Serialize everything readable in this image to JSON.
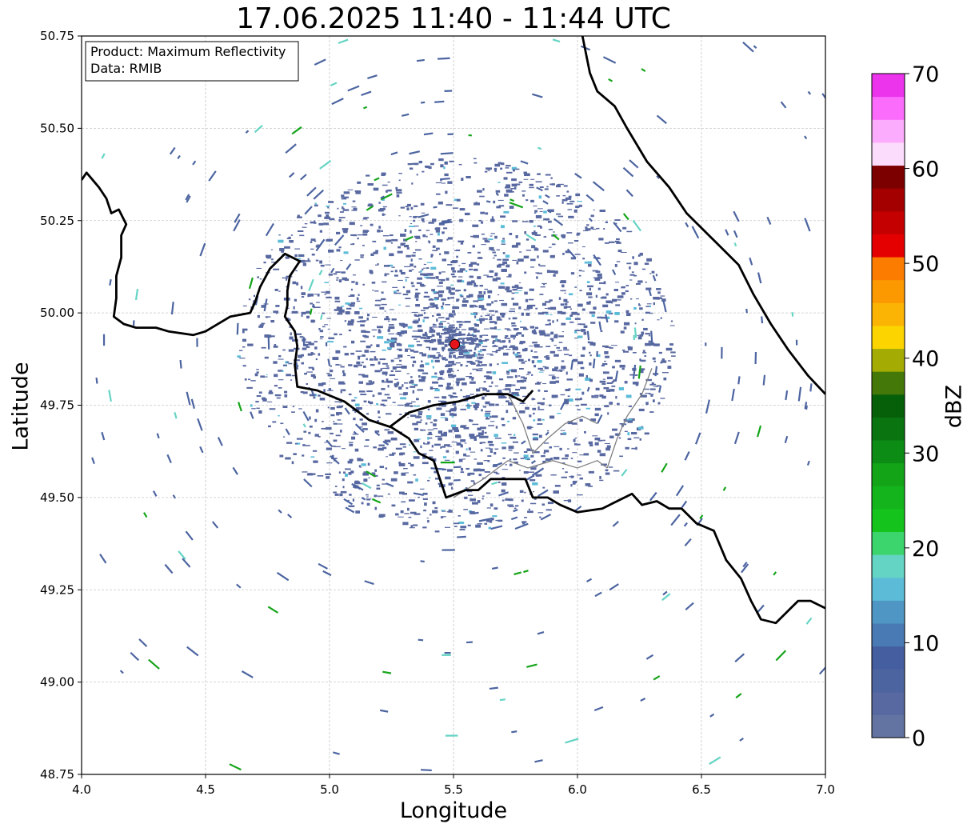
{
  "title": "17.06.2025 11:40 - 11:44 UTC",
  "info_box": {
    "product_line": "Product: Maximum Reflectivity",
    "data_line": "Data: RMIB"
  },
  "axes": {
    "xlabel": "Longitude",
    "ylabel": "Latitude",
    "xlim": [
      4.0,
      7.0
    ],
    "ylim": [
      48.75,
      50.75
    ],
    "xticks": [
      "4.0",
      "4.5",
      "5.0",
      "5.5",
      "6.0",
      "6.5",
      "7.0"
    ],
    "yticks": [
      "48.75",
      "49.00",
      "49.25",
      "49.50",
      "49.75",
      "50.00",
      "50.25",
      "50.50",
      "50.75"
    ],
    "grid": true
  },
  "radar_site": {
    "lon": 5.505,
    "lat": 49.915,
    "color": "#e8141c"
  },
  "colorbar": {
    "label": "dBZ",
    "vmin": 0,
    "vmax": 70,
    "tick_labels": [
      "0",
      "10",
      "20",
      "30",
      "40",
      "50",
      "60",
      "70"
    ],
    "colors": [
      "#6474a2",
      "#5868a0",
      "#4c64a0",
      "#445ea0",
      "#4a7ab4",
      "#5096c4",
      "#5cbcd8",
      "#64d4c4",
      "#3cd46c",
      "#14c41c",
      "#14b41c",
      "#14a418",
      "#0c8c14",
      "#0a7410",
      "#06600a",
      "#447808",
      "#a4ac04",
      "#fcd400",
      "#fcb404",
      "#fc9800",
      "#fc7c00",
      "#e40000",
      "#c40000",
      "#a40000",
      "#7c0000",
      "#fcdcfc",
      "#fcacfc",
      "#fc6cfc",
      "#ec34ec"
    ]
  },
  "borders": {
    "national": [
      [
        [
          4.0,
          50.36
        ],
        [
          4.02,
          50.38
        ],
        [
          4.07,
          50.34
        ],
        [
          4.1,
          50.31
        ],
        [
          4.12,
          50.27
        ],
        [
          4.15,
          50.28
        ],
        [
          4.18,
          50.24
        ],
        [
          4.16,
          50.21
        ],
        [
          4.16,
          50.15
        ],
        [
          4.14,
          50.1
        ],
        [
          4.14,
          50.04
        ],
        [
          4.13,
          49.99
        ],
        [
          4.17,
          49.97
        ],
        [
          4.22,
          49.96
        ],
        [
          4.3,
          49.96
        ],
        [
          4.35,
          49.95
        ],
        [
          4.45,
          49.94
        ],
        [
          4.5,
          49.95
        ],
        [
          4.6,
          49.99
        ],
        [
          4.68,
          50.0
        ],
        [
          4.7,
          50.03
        ],
        [
          4.72,
          50.07
        ],
        [
          4.76,
          50.12
        ],
        [
          4.82,
          50.16
        ],
        [
          4.88,
          50.14
        ],
        [
          4.84,
          50.1
        ],
        [
          4.83,
          50.06
        ],
        [
          4.83,
          50.02
        ],
        [
          4.82,
          49.99
        ],
        [
          4.86,
          49.95
        ],
        [
          4.87,
          49.91
        ],
        [
          4.86,
          49.86
        ],
        [
          4.87,
          49.8
        ],
        [
          4.95,
          49.79
        ],
        [
          5.06,
          49.76
        ],
        [
          5.16,
          49.71
        ],
        [
          5.25,
          49.69
        ],
        [
          5.32,
          49.66
        ],
        [
          5.36,
          49.62
        ],
        [
          5.42,
          49.6
        ],
        [
          5.46,
          49.52
        ],
        [
          5.47,
          49.5
        ],
        [
          5.55,
          49.52
        ],
        [
          5.6,
          49.52
        ],
        [
          5.65,
          49.55
        ],
        [
          5.72,
          49.55
        ],
        [
          5.79,
          49.55
        ],
        [
          5.82,
          49.5
        ],
        [
          5.88,
          49.5
        ],
        [
          5.93,
          49.48
        ],
        [
          6.0,
          49.46
        ],
        [
          6.1,
          49.47
        ],
        [
          6.22,
          49.51
        ],
        [
          6.26,
          49.48
        ],
        [
          6.32,
          49.49
        ],
        [
          6.37,
          49.47
        ],
        [
          6.42,
          49.47
        ],
        [
          6.48,
          49.43
        ],
        [
          6.55,
          49.41
        ],
        [
          6.6,
          49.33
        ],
        [
          6.66,
          49.28
        ],
        [
          6.7,
          49.22
        ],
        [
          6.74,
          49.17
        ],
        [
          6.8,
          49.16
        ],
        [
          6.86,
          49.2
        ],
        [
          6.89,
          49.22
        ],
        [
          6.94,
          49.22
        ],
        [
          7.0,
          49.2
        ]
      ],
      [
        [
          7.0,
          49.78
        ],
        [
          6.93,
          49.83
        ],
        [
          6.85,
          49.9
        ],
        [
          6.78,
          49.97
        ],
        [
          6.71,
          50.05
        ],
        [
          6.65,
          50.13
        ],
        [
          6.56,
          50.19
        ],
        [
          6.44,
          50.27
        ],
        [
          6.37,
          50.34
        ],
        [
          6.28,
          50.41
        ],
        [
          6.2,
          50.5
        ],
        [
          6.15,
          50.56
        ],
        [
          6.08,
          50.6
        ],
        [
          6.05,
          50.65
        ],
        [
          6.02,
          50.75
        ]
      ],
      [
        [
          5.24,
          49.69
        ],
        [
          5.32,
          49.73
        ],
        [
          5.42,
          49.75
        ],
        [
          5.52,
          49.76
        ],
        [
          5.62,
          49.78
        ],
        [
          5.72,
          49.78
        ],
        [
          5.78,
          49.76
        ],
        [
          5.82,
          49.79
        ]
      ]
    ],
    "regional": [
      [
        [
          5.5,
          49.5
        ],
        [
          5.62,
          49.55
        ],
        [
          5.72,
          49.6
        ],
        [
          5.8,
          49.58
        ],
        [
          5.9,
          49.6
        ],
        [
          6.0,
          49.58
        ],
        [
          6.08,
          49.6
        ],
        [
          6.12,
          49.58
        ]
      ],
      [
        [
          5.72,
          49.78
        ],
        [
          5.78,
          49.7
        ],
        [
          5.82,
          49.62
        ],
        [
          5.88,
          49.66
        ],
        [
          5.95,
          49.7
        ],
        [
          6.02,
          49.72
        ],
        [
          6.08,
          49.7
        ]
      ],
      [
        [
          6.12,
          49.58
        ],
        [
          6.16,
          49.66
        ],
        [
          6.2,
          49.72
        ],
        [
          6.26,
          49.78
        ],
        [
          6.3,
          49.85
        ]
      ]
    ]
  }
}
